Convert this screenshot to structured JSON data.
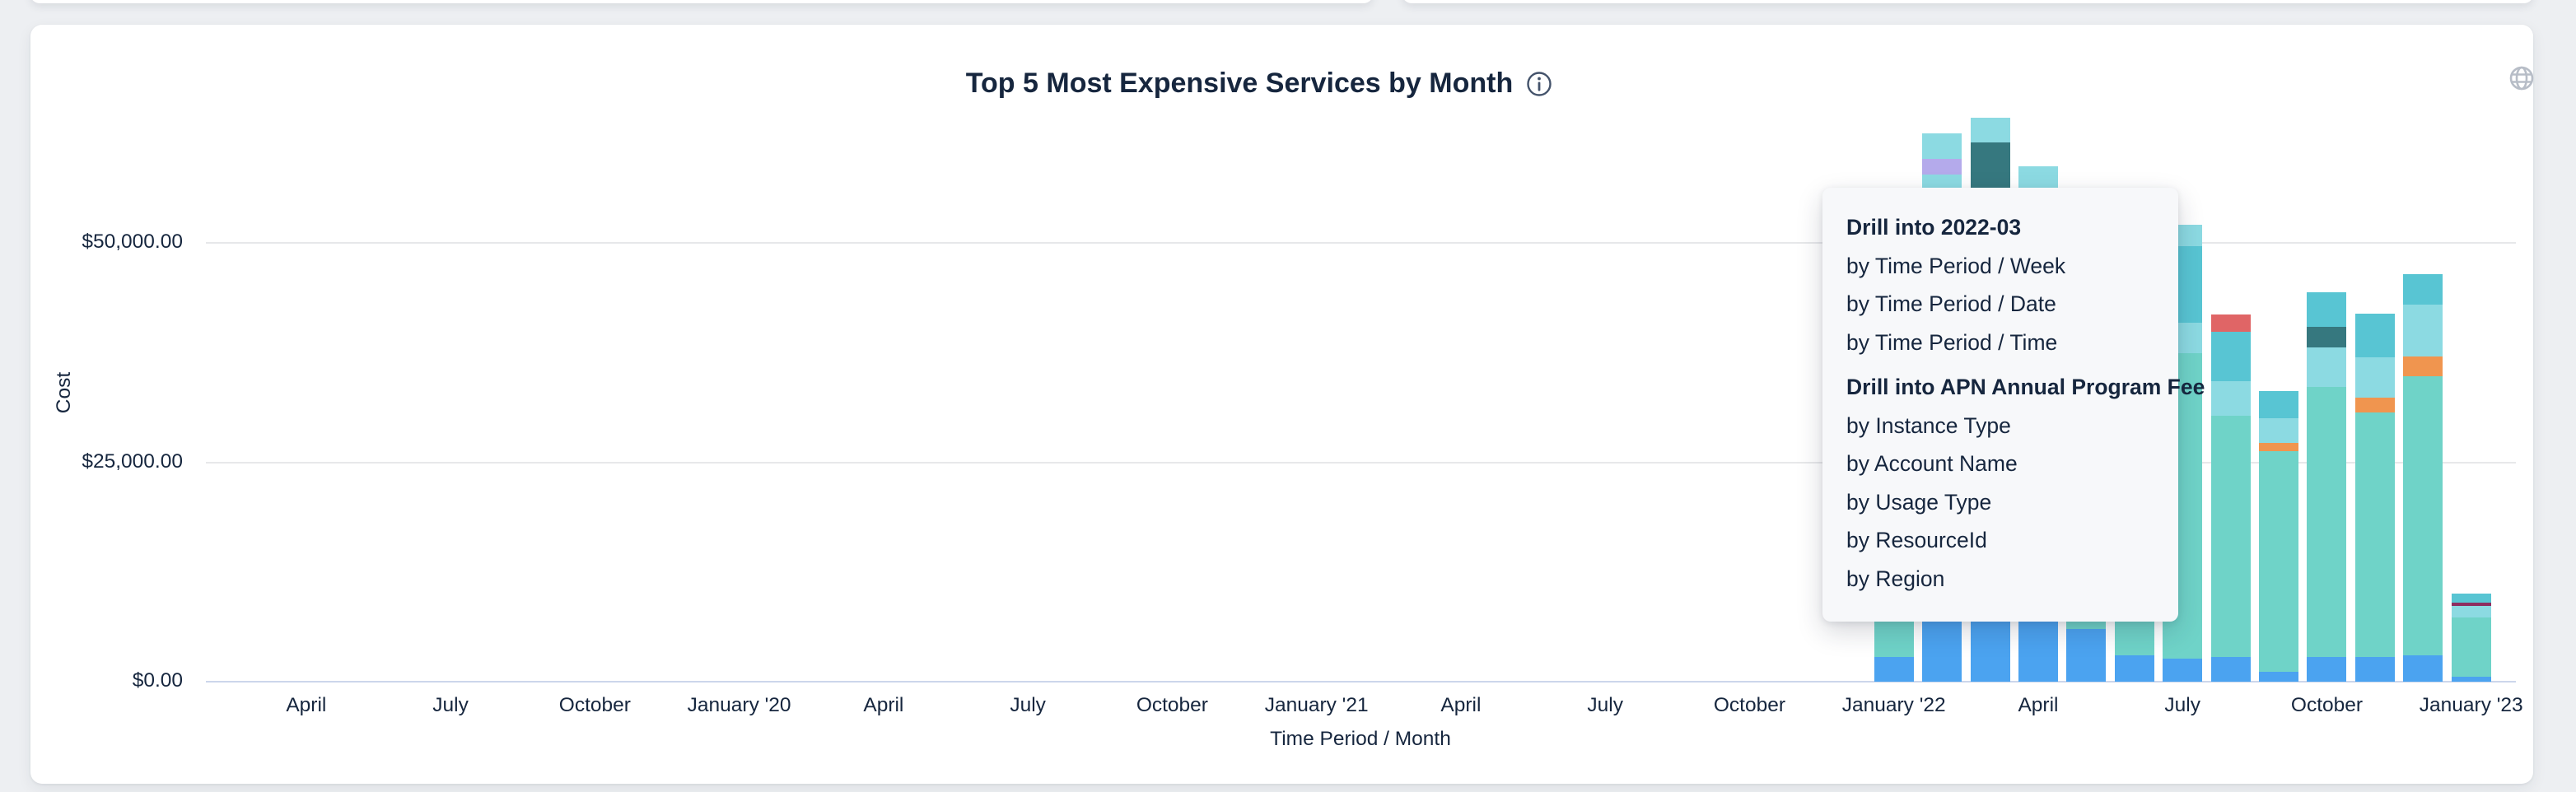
{
  "page": {
    "background": "#edeff2",
    "card_background": "#ffffff"
  },
  "header": {
    "title": "Top 5 Most Expensive Services by Month",
    "info_icon": "info-circle-icon",
    "globe_icon": "globe-icon"
  },
  "context_menu": {
    "items": [
      {
        "type": "header",
        "label": "Drill into 2022-03"
      },
      {
        "type": "item",
        "label": "by Time Period / Week"
      },
      {
        "type": "item",
        "label": "by Time Period / Date"
      },
      {
        "type": "item",
        "label": "by Time Period / Time"
      },
      {
        "type": "header",
        "label": "Drill into APN Annual Program Fee"
      },
      {
        "type": "item",
        "label": "by Instance Type"
      },
      {
        "type": "item",
        "label": "by Account Name"
      },
      {
        "type": "item",
        "label": "by Usage Type"
      },
      {
        "type": "item",
        "label": "by ResourceId"
      },
      {
        "type": "item",
        "label": "by Region"
      }
    ]
  },
  "chart_data": {
    "type": "bar",
    "stacked": true,
    "title": "Top 5 Most Expensive Services by Month",
    "xlabel": "Time Period / Month",
    "ylabel": "Cost",
    "ylim": [
      0,
      65500
    ],
    "grid": "horizontal",
    "legend": "none",
    "occlusion_note": "Bars for 2022-01 through 2022-06 are partially hidden behind the drill-down context menu; hidden segment values are estimated from visible pixels.",
    "y_ticks": [
      {
        "label": "$0.00",
        "value": 0
      },
      {
        "label": "$25,000.00",
        "value": 25000
      },
      {
        "label": "$50,000.00",
        "value": 50000
      }
    ],
    "x_ticks": [
      {
        "label": "April",
        "month": "2019-04"
      },
      {
        "label": "July",
        "month": "2019-07"
      },
      {
        "label": "October",
        "month": "2019-10"
      },
      {
        "label": "January '20",
        "month": "2020-01"
      },
      {
        "label": "April",
        "month": "2020-04"
      },
      {
        "label": "July",
        "month": "2020-07"
      },
      {
        "label": "October",
        "month": "2020-10"
      },
      {
        "label": "January '21",
        "month": "2021-01"
      },
      {
        "label": "April",
        "month": "2021-04"
      },
      {
        "label": "July",
        "month": "2021-07"
      },
      {
        "label": "October",
        "month": "2021-10"
      },
      {
        "label": "January '22",
        "month": "2022-01"
      },
      {
        "label": "April",
        "month": "2022-04"
      },
      {
        "label": "July",
        "month": "2022-07"
      },
      {
        "label": "October",
        "month": "2022-10"
      },
      {
        "label": "January '23",
        "month": "2023-01"
      }
    ],
    "colors": {
      "seafoam": "#6FD3C8",
      "blue": "#4BA3F0",
      "light_cyan": "#8CDAE2",
      "medium_teal": "#58C5D3",
      "dark_teal": "#36787F",
      "purple": "#B4AAEB",
      "red": "#E06566",
      "orange": "#F0954F",
      "maroon": "#8E2D60"
    },
    "bars": [
      {
        "month": "2022-01",
        "occluded_by_menu": "partial",
        "segments": [
          {
            "color": "blue",
            "value": 2800
          },
          {
            "color": "seafoam",
            "value": 9400
          }
        ]
      },
      {
        "month": "2022-02",
        "occluded_by_menu": "partial",
        "segments": [
          {
            "color": "blue",
            "value": 7050
          },
          {
            "color": "seafoam",
            "value": 46200
          },
          {
            "color": "light_cyan",
            "value": 4500
          },
          {
            "color": "purple",
            "value": 1800
          },
          {
            "color": "light_cyan",
            "value": 2900
          }
        ]
      },
      {
        "month": "2022-03",
        "occluded_by_menu": "partial",
        "segments": [
          {
            "color": "blue",
            "value": 7050
          },
          {
            "color": "seafoam",
            "value": 44000
          },
          {
            "color": "dark_teal",
            "value": 10350
          },
          {
            "color": "light_cyan",
            "value": 2900
          }
        ]
      },
      {
        "month": "2022-04",
        "occluded_by_menu": "partial",
        "segments": [
          {
            "color": "blue",
            "value": 7050
          },
          {
            "color": "seafoam",
            "value": 45950
          },
          {
            "color": "light_cyan",
            "value": 5700
          }
        ]
      },
      {
        "month": "2022-05",
        "occluded_by_menu": "partial",
        "segments": [
          {
            "color": "blue",
            "value": 6000
          },
          {
            "color": "seafoam",
            "value": 24000
          }
        ]
      },
      {
        "month": "2022-06",
        "occluded_by_menu": "partial",
        "segments": [
          {
            "color": "blue",
            "value": 3000
          },
          {
            "color": "seafoam",
            "value": 37000
          }
        ]
      },
      {
        "month": "2022-07",
        "occluded_by_menu": "edge",
        "segments": [
          {
            "color": "blue",
            "value": 2600
          },
          {
            "color": "seafoam",
            "value": 34800
          },
          {
            "color": "light_cyan",
            "value": 3500
          },
          {
            "color": "medium_teal",
            "value": 8700
          },
          {
            "color": "light_cyan",
            "value": 2450
          }
        ]
      },
      {
        "month": "2022-08",
        "occluded_by_menu": "none",
        "segments": [
          {
            "color": "blue",
            "value": 2800
          },
          {
            "color": "seafoam",
            "value": 27500
          },
          {
            "color": "light_cyan",
            "value": 3950
          },
          {
            "color": "medium_teal",
            "value": 5650
          },
          {
            "color": "red",
            "value": 1900
          }
        ]
      },
      {
        "month": "2022-09",
        "occluded_by_menu": "none",
        "segments": [
          {
            "color": "blue",
            "value": 1150
          },
          {
            "color": "seafoam",
            "value": 25150
          },
          {
            "color": "orange",
            "value": 950
          },
          {
            "color": "light_cyan",
            "value": 2800
          },
          {
            "color": "medium_teal",
            "value": 3100
          }
        ]
      },
      {
        "month": "2022-10",
        "occluded_by_menu": "none",
        "segments": [
          {
            "color": "blue",
            "value": 2800
          },
          {
            "color": "seafoam",
            "value": 30800
          },
          {
            "color": "light_cyan",
            "value": 4500
          },
          {
            "color": "dark_teal",
            "value": 2350
          },
          {
            "color": "medium_teal",
            "value": 3950
          }
        ]
      },
      {
        "month": "2022-11",
        "occluded_by_menu": "none",
        "segments": [
          {
            "color": "blue",
            "value": 2800
          },
          {
            "color": "seafoam",
            "value": 27900
          },
          {
            "color": "orange",
            "value": 1700
          },
          {
            "color": "light_cyan",
            "value": 4600
          },
          {
            "color": "medium_teal",
            "value": 4900
          }
        ]
      },
      {
        "month": "2022-12",
        "occluded_by_menu": "none",
        "segments": [
          {
            "color": "blue",
            "value": 3000
          },
          {
            "color": "seafoam",
            "value": 31800
          },
          {
            "color": "orange",
            "value": 2250
          },
          {
            "color": "light_cyan",
            "value": 5900
          },
          {
            "color": "medium_teal",
            "value": 3500
          }
        ]
      },
      {
        "month": "2023-01",
        "occluded_by_menu": "none",
        "segments": [
          {
            "color": "blue",
            "value": 550
          },
          {
            "color": "seafoam",
            "value": 6750
          },
          {
            "color": "light_cyan",
            "value": 1300
          },
          {
            "color": "maroon",
            "value": 400
          },
          {
            "color": "medium_teal",
            "value": 1050
          }
        ]
      }
    ]
  }
}
